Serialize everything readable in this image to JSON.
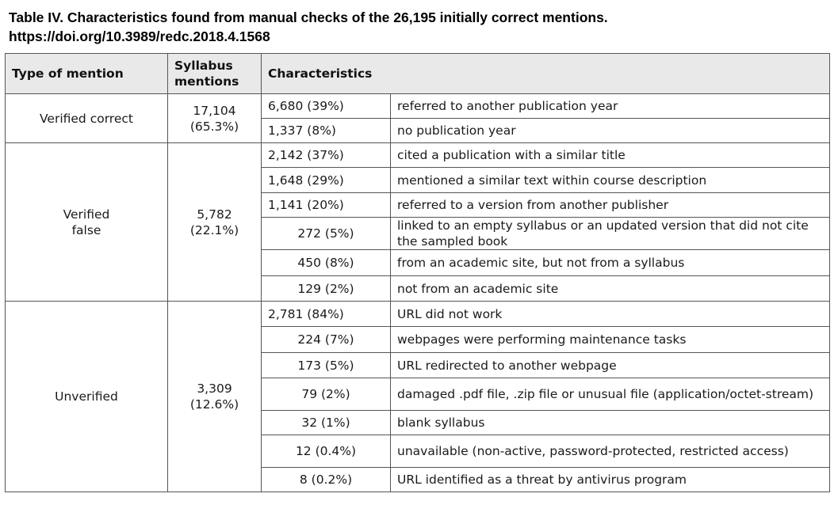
{
  "caption": {
    "line1": "Table IV. Characteristics found from manual checks of the 26,195 initially correct mentions.",
    "line2": "https://doi.org/10.3989/redc.2018.4.1568"
  },
  "headers": {
    "type": "Type of mention",
    "syllabus_line1": "Syllabus",
    "syllabus_line2": "mentions",
    "characteristics": "Characteristics"
  },
  "groups": [
    {
      "type_line1": "Verified correct",
      "type_line2": "",
      "count": "17,104",
      "percent": "(65.3%)",
      "rows": [
        {
          "value": "6,680 (39%)",
          "desc": "referred to another publication year"
        },
        {
          "value": "1,337 (8%)",
          "desc": "no publication year"
        }
      ]
    },
    {
      "type_line1": "Verified",
      "type_line2": "false",
      "count": "5,782",
      "percent": "(22.1%)",
      "rows": [
        {
          "value": "2,142 (37%)",
          "desc": "cited a publication with a similar title"
        },
        {
          "value": "1,648 (29%)",
          "desc": "mentioned a similar text within course description"
        },
        {
          "value": "1,141 (20%)",
          "desc": "referred to a version from another publisher"
        },
        {
          "value": "272 (5%)",
          "desc": "linked to an empty syllabus or an updated version that did not cite the sampled book"
        },
        {
          "value": "450 (8%)",
          "desc": "from an academic site, but not from a syllabus"
        },
        {
          "value": "129 (2%)",
          "desc": "not from an academic site"
        }
      ]
    },
    {
      "type_line1": "Unverified",
      "type_line2": "",
      "count": "3,309",
      "percent": "(12.6%)",
      "rows": [
        {
          "value": "2,781 (84%)",
          "desc": "URL did not work"
        },
        {
          "value": "224 (7%)",
          "desc": "webpages were performing maintenance tasks"
        },
        {
          "value": "173 (5%)",
          "desc": "URL redirected to another webpage"
        },
        {
          "value": "79 (2%)",
          "desc": "damaged .pdf file, .zip file or unusual file (application/octet-stream)"
        },
        {
          "value": "32 (1%)",
          "desc": "blank syllabus"
        },
        {
          "value": "12 (0.4%)",
          "desc": "unavailable (non-active, password-protected, restricted access)"
        },
        {
          "value": "8 (0.2%)",
          "desc": "URL identified as a threat by antivirus program"
        }
      ]
    }
  ]
}
